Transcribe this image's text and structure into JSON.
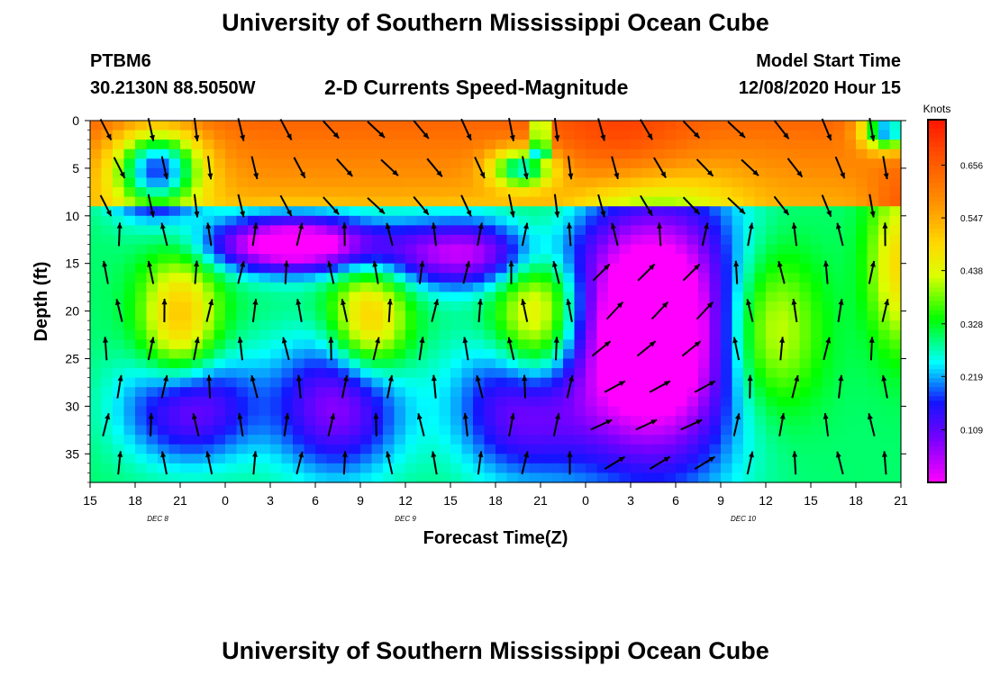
{
  "header": {
    "title": "University of Southern Mississippi Ocean Cube",
    "station_id": "PTBM6",
    "station_coords": "30.2130N 88.5050W",
    "chart_title": "2-D Currents Speed-Magnitude",
    "model_start_label": "Model Start Time",
    "model_start_value": "12/08/2020 Hour 15"
  },
  "footer": {
    "title": "University of Southern Mississippi Ocean Cube"
  },
  "chart_data": {
    "type": "heatmap",
    "title": "2-D Currents Speed-Magnitude",
    "xlabel": "Forecast Time(Z)",
    "ylabel": "Depth (ft)",
    "x_tick_labels": [
      "15",
      "18",
      "21",
      "0",
      "3",
      "6",
      "9",
      "12",
      "15",
      "18",
      "21",
      "0",
      "3",
      "6",
      "9",
      "12",
      "15",
      "18",
      "21"
    ],
    "date_labels": [
      {
        "label": "DEC 8",
        "tick_index": 1.5
      },
      {
        "label": "DEC 9",
        "tick_index": 7
      },
      {
        "label": "DEC 10",
        "tick_index": 14.5
      }
    ],
    "y_ticks": [
      0,
      5,
      10,
      15,
      20,
      25,
      30,
      35
    ],
    "ylim": [
      0,
      38
    ],
    "colorbar": {
      "unit_label": "Knots",
      "tick_labels": [
        "0.656",
        "0.547",
        "0.438",
        "0.328",
        "0.219",
        "0.109"
      ],
      "range": [
        0.0,
        0.75
      ]
    },
    "colors": {
      "background": "#ffffff",
      "arrow": "#000000"
    }
  }
}
